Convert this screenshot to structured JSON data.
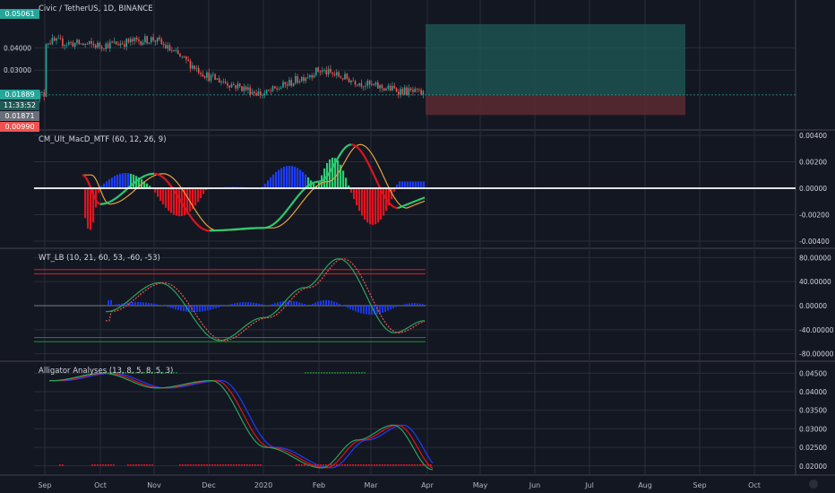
{
  "symbol_title": "Civic / TetherUS, 1D, BINANCE",
  "indicators": {
    "macd": "CM_Ult_MacD_MTF (60, 12, 26, 9)",
    "wt": "WT_LB (10, 21, 60, 53, -60, -53)",
    "alligator": "Alligator Analyses (13, 8, 5, 8, 5, 3)"
  },
  "price_tags": {
    "target": "0.05061",
    "current": "0.01889",
    "countdown": "11:33:52",
    "ref": "0.01871",
    "stop": "0.00990"
  },
  "x_labels": [
    "Sep",
    "Oct",
    "Nov",
    "Dec",
    "2020",
    "Feb",
    "Mar",
    "Apr",
    "May",
    "Jun",
    "Jul",
    "Aug",
    "Sep",
    "Oct"
  ],
  "colors": {
    "background": "#131722",
    "grid": "#2a2e39",
    "up": "#26a69a",
    "down": "#ef5350",
    "target_zone": "#1f5a57",
    "stop_zone": "#5c2a30",
    "macd_green": "#2ecc71",
    "macd_red": "#e0141e",
    "macd_orange": "#e6a23c"
  },
  "chart_data": [
    {
      "type": "candlestick",
      "title": "Civic / TetherUS, 1D, BINANCE",
      "y_ticks": [
        "0.04000",
        "0.03000"
      ],
      "ylim": [
        0.006,
        0.055
      ],
      "x": [
        "Sep",
        "Oct",
        "Nov",
        "Dec",
        "2020",
        "Feb",
        "Mar",
        "Apr"
      ],
      "close": [
        0.043,
        0.041,
        0.044,
        0.027,
        0.019,
        0.03,
        0.023,
        0.019
      ],
      "long_position": {
        "entry": 0.01889,
        "target": 0.05061,
        "stop": 0.0099
      }
    },
    {
      "type": "line",
      "title": "CM_Ult_MacD_MTF (60, 12, 26, 9)",
      "y_ticks": [
        "0.00400",
        "0.00200",
        "0.00000",
        "-0.00200",
        "-0.00400"
      ],
      "ylim": [
        -0.0042,
        0.0042
      ],
      "x": [
        "Sep",
        "Oct",
        "Nov",
        "Dec",
        "2020",
        "Feb",
        "Mar",
        "Apr"
      ],
      "series": [
        {
          "values": [
            0.001,
            -0.0012,
            0.0011,
            -0.0032,
            -0.003,
            0.0005,
            0.0033,
            -0.0015
          ]
        }
      ]
    },
    {
      "type": "line",
      "title": "WT_LB (10, 21, 60, 53, -60, -53)",
      "y_ticks": [
        "80.00000",
        "40.00000",
        "0.00000",
        "-40.00000",
        "-80.00000"
      ],
      "ylim": [
        -85,
        88
      ],
      "levels": [
        60,
        53,
        -53,
        -60
      ],
      "x": [
        "Oct",
        "Nov",
        "Dec",
        "2020",
        "Feb",
        "Mar",
        "Apr"
      ],
      "series": [
        {
          "values": [
            -10,
            35,
            -55,
            -20,
            30,
            75,
            -25
          ]
        }
      ]
    },
    {
      "type": "line",
      "title": "Alligator Analyses (13, 8, 5, 8, 5, 3)",
      "y_ticks": [
        "0.04500",
        "0.04000",
        "0.03500",
        "0.03000",
        "0.02500",
        "0.02000"
      ],
      "ylim": [
        0.0185,
        0.0475
      ],
      "x": [
        "Sep",
        "Oct",
        "Nov",
        "Dec",
        "2020",
        "Feb",
        "Mar",
        "Apr"
      ],
      "series": [
        {
          "values": [
            0.043,
            0.04,
            0.042,
            0.03,
            0.02,
            0.027,
            0.031,
            0.019
          ]
        }
      ]
    }
  ]
}
